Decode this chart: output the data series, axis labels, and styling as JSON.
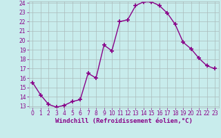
{
  "hours": [
    0,
    1,
    2,
    3,
    4,
    5,
    6,
    7,
    8,
    9,
    10,
    11,
    12,
    13,
    14,
    15,
    16,
    17,
    18,
    19,
    20,
    21,
    22,
    23
  ],
  "values": [
    15.5,
    14.2,
    13.2,
    12.9,
    13.1,
    13.5,
    13.7,
    16.5,
    16.0,
    19.5,
    18.9,
    22.0,
    22.2,
    23.7,
    24.1,
    24.1,
    23.7,
    22.9,
    21.7,
    19.8,
    19.1,
    18.1,
    17.3,
    17.0
  ],
  "line_color": "#880088",
  "marker": "+",
  "marker_size": 4,
  "bg_color": "#c8ecec",
  "grid_color": "#aabbbb",
  "xlabel": "Windchill (Refroidissement éolien,°C)",
  "xlabel_color": "#880088",
  "tick_color": "#880088",
  "ylim_min": 13,
  "ylim_max": 24,
  "yticks": [
    13,
    14,
    15,
    16,
    17,
    18,
    19,
    20,
    21,
    22,
    23,
    24
  ],
  "xticks": [
    0,
    1,
    2,
    3,
    4,
    5,
    6,
    7,
    8,
    9,
    10,
    11,
    12,
    13,
    14,
    15,
    16,
    17,
    18,
    19,
    20,
    21,
    22,
    23
  ],
  "line_width": 1.0,
  "tick_fontsize": 5.5,
  "xlabel_fontsize": 6.5
}
